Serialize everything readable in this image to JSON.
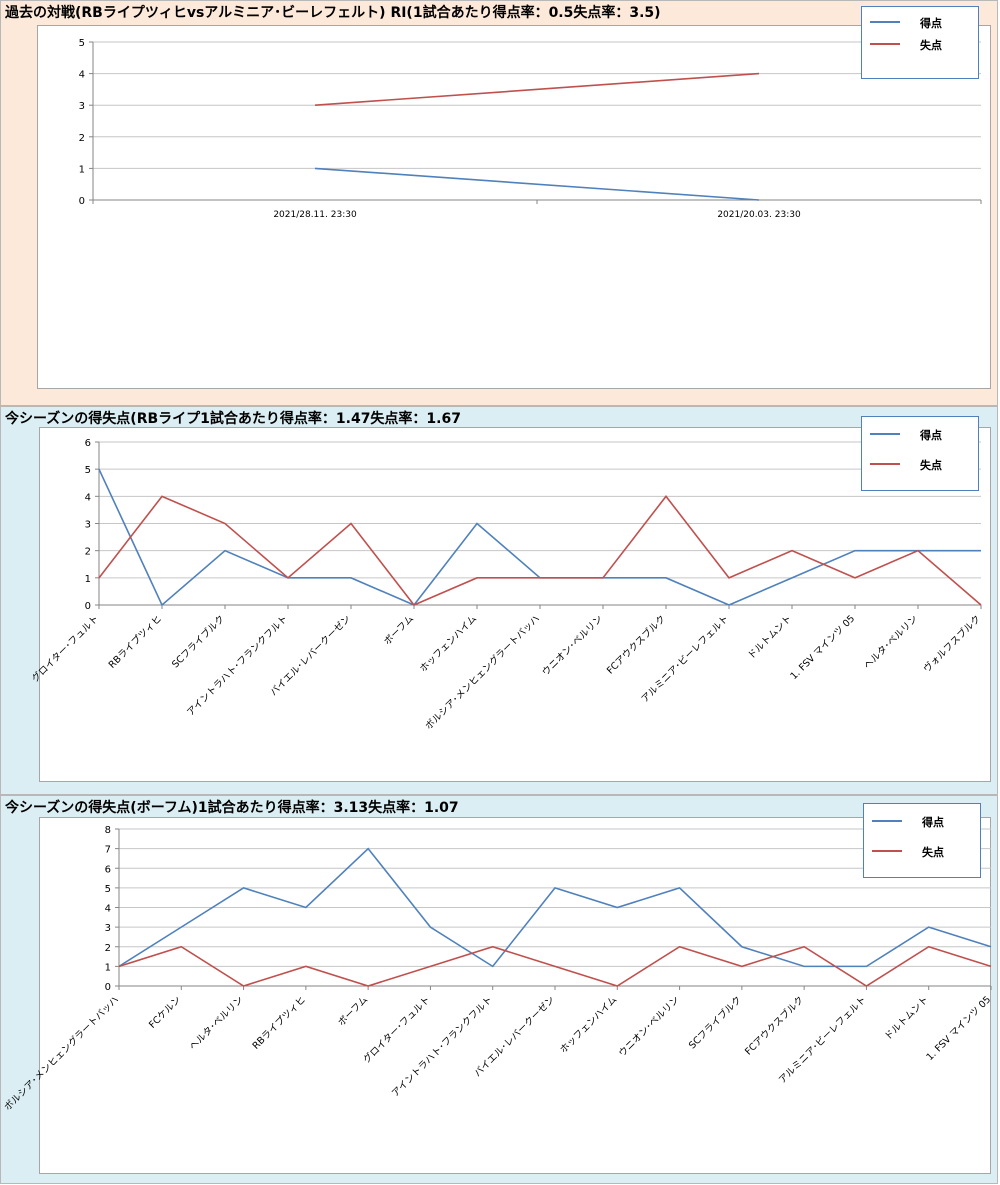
{
  "colors": {
    "goals": "#4f81bd",
    "conceded": "#c0504d",
    "grid": "#c6c6c6",
    "axis": "#868686"
  },
  "legend": {
    "goals_label": "得点",
    "conceded_label": "失点"
  },
  "panels": [
    {
      "title": "過去の対戦(RBライプツィヒvsアルミニア･ビーレフェルト) RI(1試合あたり得点率：0.5失点率：3.5)",
      "background": "#fde9d9"
    },
    {
      "title": "今シーズンの得失点(RBライプ1試合あたり得点率：1.47失点率：1.67",
      "background": "#daeef3"
    },
    {
      "title": "今シーズンの得失点(ボーフム)1試合あたり得点率：3.13失点率：1.07",
      "background": "#daeef3"
    }
  ],
  "chart_data": [
    {
      "type": "line",
      "categories": [
        "2021/28.11. 23:30",
        "2021/20.03. 23:30"
      ],
      "ylim": [
        0,
        5
      ],
      "yticks": [
        0,
        1,
        2,
        3,
        4,
        5
      ],
      "grid": true,
      "legend_position": "top-right",
      "series": [
        {
          "name": "得点",
          "values": [
            1,
            0
          ]
        },
        {
          "name": "失点",
          "values": [
            3,
            4
          ]
        }
      ]
    },
    {
      "type": "line",
      "categories": [
        "グロイター･フュルト",
        "RBライプツィヒ",
        "SCフライブルク",
        "アイントラハト･フランクフルト",
        "バイエル･レバークーゼン",
        "ボーフム",
        "ホッフェンハイム",
        "ボルシア･メンヒェングラートバッハ",
        "ウニオン･ベルリン",
        "FCアウクスブルク",
        "アルミニア･ビーレフェルト",
        "ドルトムント",
        "1. FSV マインツ 05",
        "ヘルタ･ベルリン",
        "ヴォルフスブルク"
      ],
      "ylim": [
        0,
        6
      ],
      "yticks": [
        0,
        1,
        2,
        3,
        4,
        5,
        6
      ],
      "grid": true,
      "legend_position": "top-right",
      "series": [
        {
          "name": "得点",
          "values": [
            5,
            0,
            2,
            1,
            1,
            0,
            3,
            1,
            1,
            1,
            0,
            1,
            2,
            2,
            2
          ]
        },
        {
          "name": "失点",
          "values": [
            1,
            4,
            3,
            1,
            3,
            0,
            1,
            1,
            1,
            4,
            1,
            2,
            1,
            2,
            0
          ]
        }
      ]
    },
    {
      "type": "line",
      "categories": [
        "ボルシア･メンヒェングラートバッハ",
        "FCケルン",
        "ヘルタ･ベルリン",
        "RBライプツィヒ",
        "ボーフム",
        "グロイター･フュルト",
        "アイントラハト･フランクフルト",
        "バイエル･レバークーゼン",
        "ホッフェンハイム",
        "ウニオン･ベルリン",
        "SCフライブルク",
        "FCアウクスブルク",
        "アルミニア･ビーレフェルト",
        "ドルトムント",
        "1. FSV マインツ 05"
      ],
      "ylim": [
        0,
        8
      ],
      "yticks": [
        0,
        1,
        2,
        3,
        4,
        5,
        6,
        7,
        8
      ],
      "grid": true,
      "legend_position": "top-right",
      "series": [
        {
          "name": "得点",
          "values": [
            1,
            3,
            5,
            4,
            7,
            3,
            1,
            5,
            4,
            5,
            2,
            1,
            1,
            3,
            2
          ]
        },
        {
          "name": "失点",
          "values": [
            1,
            2,
            0,
            1,
            0,
            1,
            2,
            1,
            0,
            2,
            1,
            2,
            0,
            2,
            1
          ]
        }
      ]
    }
  ]
}
